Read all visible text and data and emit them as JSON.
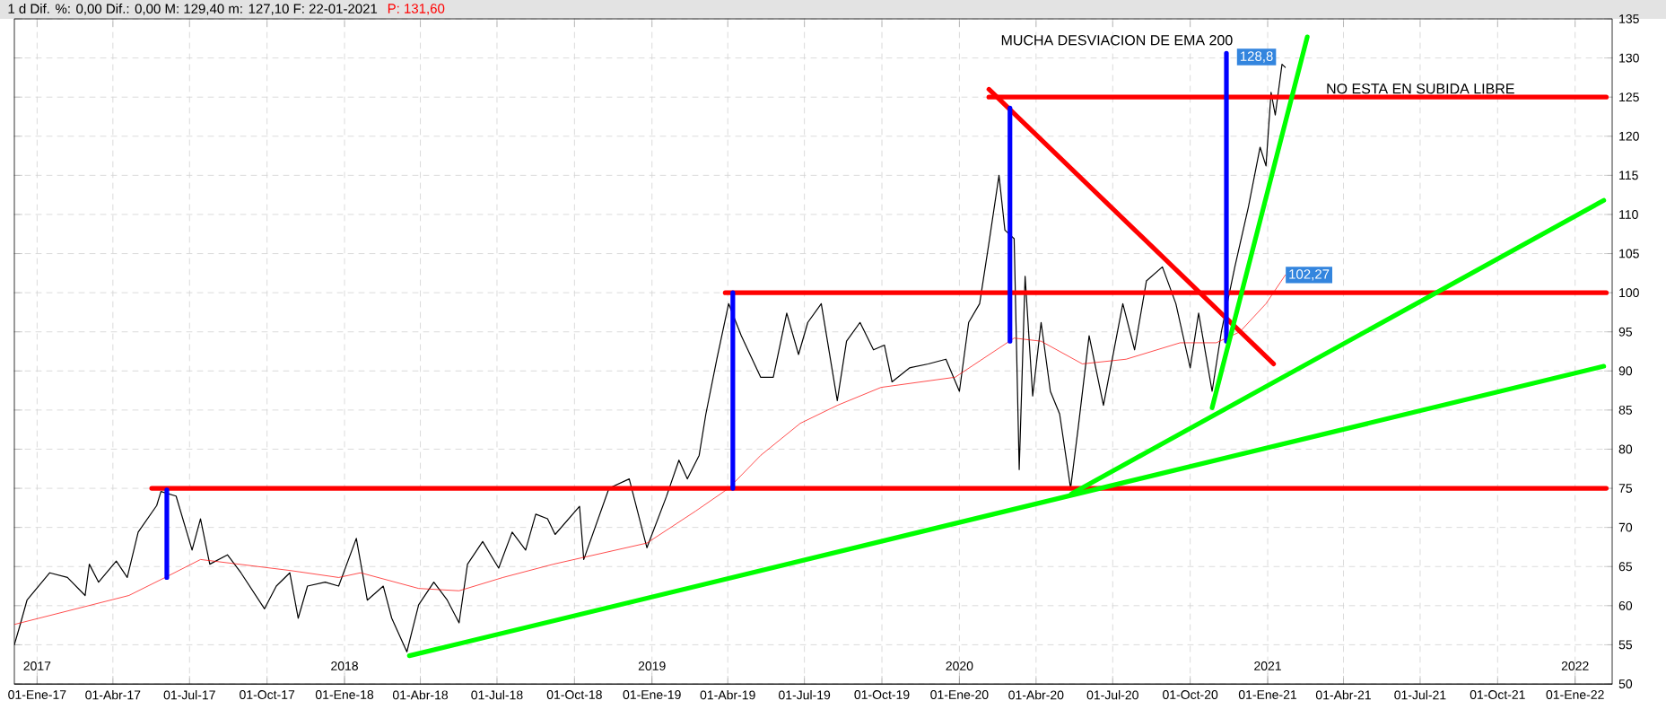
{
  "chart_data": {
    "type": "line",
    "title": "1 d  Dif. %: 0,00  Dif.: 0,00  M: 129,40  m: 127,10  F: 22-01-2021",
    "subtitle": "P: 131,60",
    "xlim": [
      "2016-12-05",
      "2022-02-14"
    ],
    "ylim": [
      50,
      135
    ],
    "yticks": [
      50,
      55,
      60,
      65,
      70,
      75,
      80,
      85,
      90,
      95,
      100,
      105,
      110,
      115,
      120,
      125,
      130,
      135
    ],
    "xticks": [
      {
        "value": "2017-01-01",
        "label": "01-Ene-17"
      },
      {
        "value": "2017-04-01",
        "label": "01-Abr-17"
      },
      {
        "value": "2017-07-01",
        "label": "01-Jul-17"
      },
      {
        "value": "2017-10-01",
        "label": "01-Oct-17"
      },
      {
        "value": "2018-01-01",
        "label": "01-Ene-18"
      },
      {
        "value": "2018-04-01",
        "label": "01-Abr-18"
      },
      {
        "value": "2018-07-01",
        "label": "01-Jul-18"
      },
      {
        "value": "2018-10-01",
        "label": "01-Oct-18"
      },
      {
        "value": "2019-01-01",
        "label": "01-Ene-19"
      },
      {
        "value": "2019-04-01",
        "label": "01-Abr-19"
      },
      {
        "value": "2019-07-01",
        "label": "01-Jul-19"
      },
      {
        "value": "2019-10-01",
        "label": "01-Oct-19"
      },
      {
        "value": "2020-01-01",
        "label": "01-Ene-20"
      },
      {
        "value": "2020-04-01",
        "label": "01-Abr-20"
      },
      {
        "value": "2020-07-01",
        "label": "01-Jul-20"
      },
      {
        "value": "2020-10-01",
        "label": "01-Oct-20"
      },
      {
        "value": "2021-01-01",
        "label": "01-Ene-21"
      },
      {
        "value": "2021-04-01",
        "label": "01-Abr-21"
      },
      {
        "value": "2021-07-01",
        "label": "01-Jul-21"
      },
      {
        "value": "2021-10-01",
        "label": "01-Oct-21"
      },
      {
        "value": "2022-01-01",
        "label": "01-Ene-22"
      }
    ],
    "x2lim": [
      "2016-12-05",
      "2022-02-14"
    ],
    "x2ticks": [
      {
        "value": "2017-01-01",
        "label": "2017"
      },
      {
        "value": "2018-01-01",
        "label": "2018"
      },
      {
        "value": "2019-01-01",
        "label": "2019"
      },
      {
        "value": "2020-01-01",
        "label": "2020"
      },
      {
        "value": "2021-01-01",
        "label": "2021"
      },
      {
        "value": "2022-01-01",
        "label": "2022"
      }
    ],
    "grid": true,
    "series": [
      {
        "color": "#000000",
        "x": [
          "2016-12-05",
          "2016-12-12",
          "2016-12-20",
          "2017-01-16",
          "2017-02-06",
          "2017-02-27",
          "2017-03-04",
          "2017-03-15",
          "2017-04-05",
          "2017-04-18",
          "2017-05-01",
          "2017-05-23",
          "2017-05-28",
          "2017-06-15",
          "2017-07-04",
          "2017-07-14",
          "2017-07-25",
          "2017-08-15",
          "2017-08-31",
          "2017-09-28",
          "2017-10-12",
          "2017-10-28",
          "2017-11-07",
          "2017-11-18",
          "2017-12-09",
          "2017-12-25",
          "2018-01-15",
          "2018-01-28",
          "2018-02-16",
          "2018-02-26",
          "2018-03-16",
          "2018-03-30",
          "2018-04-17",
          "2018-05-03",
          "2018-05-17",
          "2018-05-27",
          "2018-06-14",
          "2018-07-03",
          "2018-07-19",
          "2018-08-04",
          "2018-08-16",
          "2018-08-30",
          "2018-09-08",
          "2018-10-07",
          "2018-10-12",
          "2018-11-11",
          "2018-12-05",
          "2018-12-26",
          "2019-01-18",
          "2019-02-02",
          "2019-02-12",
          "2019-02-26",
          "2019-03-06",
          "2019-03-19",
          "2019-04-02",
          "2019-04-17",
          "2019-05-10",
          "2019-05-25",
          "2019-06-10",
          "2019-06-24",
          "2019-07-05",
          "2019-07-21",
          "2019-08-09",
          "2019-08-20",
          "2019-09-05",
          "2019-09-21",
          "2019-10-04",
          "2019-10-13",
          "2019-11-03",
          "2019-11-25",
          "2019-12-16",
          "2020-01-01",
          "2020-01-12",
          "2020-01-25",
          "2020-02-05",
          "2020-02-17",
          "2020-02-24",
          "2020-03-06",
          "2020-03-12",
          "2020-03-19",
          "2020-03-28",
          "2020-04-07",
          "2020-04-18",
          "2020-04-29",
          "2020-05-12",
          "2020-05-21",
          "2020-06-03",
          "2020-06-20",
          "2020-07-13",
          "2020-07-27",
          "2020-08-10",
          "2020-08-29",
          "2020-09-14",
          "2020-10-01",
          "2020-10-11",
          "2020-10-27",
          "2020-11-07",
          "2020-11-23",
          "2020-12-09",
          "2020-12-23",
          "2020-12-30",
          "2021-01-05",
          "2021-01-10",
          "2021-01-18",
          "2021-01-22"
        ],
        "values": [
          55.0,
          57.6,
          60.7,
          64.2,
          63.6,
          61.3,
          65.3,
          63.0,
          65.7,
          63.6,
          69.4,
          72.8,
          74.6,
          74.0,
          67.1,
          71.1,
          65.3,
          66.5,
          64.2,
          59.6,
          62.5,
          64.2,
          58.4,
          62.5,
          63.0,
          62.5,
          68.6,
          60.7,
          62.5,
          58.4,
          54.1,
          60.1,
          63.0,
          60.7,
          57.8,
          65.3,
          68.2,
          64.8,
          69.4,
          67.1,
          71.7,
          71.1,
          69.1,
          72.7,
          65.9,
          75.0,
          76.2,
          67.4,
          73.9,
          78.6,
          76.2,
          79.2,
          84.5,
          91.5,
          98.6,
          94.5,
          89.2,
          89.2,
          97.4,
          92.1,
          96.2,
          98.6,
          86.2,
          93.8,
          96.2,
          92.7,
          93.3,
          88.6,
          90.4,
          90.9,
          91.5,
          87.4,
          96.2,
          98.6,
          106.3,
          115.0,
          108.0,
          106.9,
          77.4,
          102.1,
          86.8,
          96.2,
          87.4,
          84.5,
          75.0,
          82.7,
          94.5,
          85.6,
          98.6,
          92.7,
          101.5,
          103.3,
          98.6,
          90.4,
          97.4,
          87.4,
          95.0,
          103.3,
          110.9,
          118.6,
          116.2,
          125.6,
          122.7,
          129.2,
          128.8
        ],
        "value_labels": [
          null,
          null,
          null,
          null,
          null,
          null,
          null,
          null,
          null,
          null,
          null,
          null,
          null,
          null,
          null,
          null,
          null,
          null,
          null,
          null,
          null,
          null,
          null,
          null,
          null,
          null,
          null,
          null,
          null,
          null,
          null,
          null,
          null,
          null,
          null,
          null,
          null,
          null,
          null,
          null,
          null,
          null,
          null,
          null,
          null,
          null,
          null,
          null,
          null,
          null,
          null,
          null,
          null,
          null,
          null,
          null,
          null,
          null,
          null,
          null,
          null,
          null,
          null,
          null,
          null,
          null,
          null,
          null,
          null,
          null,
          null,
          null,
          null,
          null,
          null,
          null,
          null,
          null,
          null,
          null,
          null,
          null,
          null,
          null,
          null,
          null,
          null,
          null,
          null,
          null,
          null,
          null,
          null,
          null,
          null,
          null,
          null,
          null,
          null,
          null,
          null,
          null,
          null,
          null,
          "128,8"
        ]
      },
      {
        "color": "#ff0000",
        "x": [
          "2016-12-05",
          "2017-04-20",
          "2017-06-02",
          "2017-07-14",
          "2017-10-28",
          "2017-12-25",
          "2018-01-20",
          "2018-03-30",
          "2018-05-17",
          "2018-07-08",
          "2018-09-06",
          "2018-12-26",
          "2019-02-22",
          "2019-04-02",
          "2019-05-10",
          "2019-06-26",
          "2019-08-09",
          "2019-09-30",
          "2019-12-27",
          "2020-03-06",
          "2020-04-07",
          "2020-05-26",
          "2020-07-17",
          "2020-09-19",
          "2020-11-01",
          "2020-11-29",
          "2020-12-30",
          "2021-01-22"
        ],
        "values": [
          57.6,
          61.3,
          63.6,
          65.9,
          64.5,
          63.6,
          64.2,
          62.2,
          61.9,
          63.6,
          65.3,
          68.0,
          72.1,
          75.0,
          79.2,
          83.3,
          85.6,
          87.9,
          89.2,
          94.2,
          93.8,
          90.9,
          91.5,
          93.6,
          93.6,
          95.0,
          98.6,
          102.27
        ],
        "value_labels": [
          null,
          null,
          null,
          null,
          null,
          null,
          null,
          null,
          null,
          null,
          null,
          null,
          null,
          null,
          null,
          null,
          null,
          null,
          null,
          null,
          null,
          null,
          null,
          null,
          null,
          null,
          null,
          "102,27"
        ]
      },
      {
        "color": "#ff0000",
        "x": [
          "2017-05-17",
          "2022-02-07"
        ],
        "values": [
          75,
          75
        ]
      },
      {
        "color": "#ff0000",
        "x": [
          "2019-03-29",
          "2022-02-07"
        ],
        "values": [
          100,
          100
        ]
      },
      {
        "color": "#ff0000",
        "x": [
          "2020-02-05",
          "2022-02-07"
        ],
        "values": [
          125,
          125
        ]
      },
      {
        "color": "#ff0000",
        "x": [
          "2020-02-05",
          "2021-01-08"
        ],
        "values": [
          126.0,
          90.9
        ]
      },
      {
        "color": "#0000ff",
        "x": [
          "2017-06-04",
          "2017-06-04"
        ],
        "values": [
          74.8,
          63.6
        ]
      },
      {
        "color": "#0000ff",
        "x": [
          "2019-04-07",
          "2019-04-07"
        ],
        "values": [
          100,
          75
        ]
      },
      {
        "color": "#0000ff",
        "x": [
          "2020-03-01",
          "2020-03-01"
        ],
        "values": [
          123.6,
          93.8
        ]
      },
      {
        "color": "#0000ff",
        "x": [
          "2020-11-13",
          "2020-11-13"
        ],
        "values": [
          130.6,
          93.8
        ]
      },
      {
        "color": "#00ff00",
        "x": [
          "2018-03-19",
          "2022-02-04"
        ],
        "values": [
          53.6,
          90.6
        ]
      },
      {
        "color": "#00ff00",
        "x": [
          "2020-05-13",
          "2022-02-04"
        ],
        "values": [
          74.3,
          111.8
        ]
      },
      {
        "color": "#00ff00",
        "x": [
          "2020-10-27",
          "2021-02-17"
        ],
        "values": [
          85.3,
          132.7
        ]
      }
    ],
    "annotations": [
      "MUCHA DESVIACION DE EMA 200",
      "NO ESTA EN SUBIDA LIBRE"
    ]
  }
}
